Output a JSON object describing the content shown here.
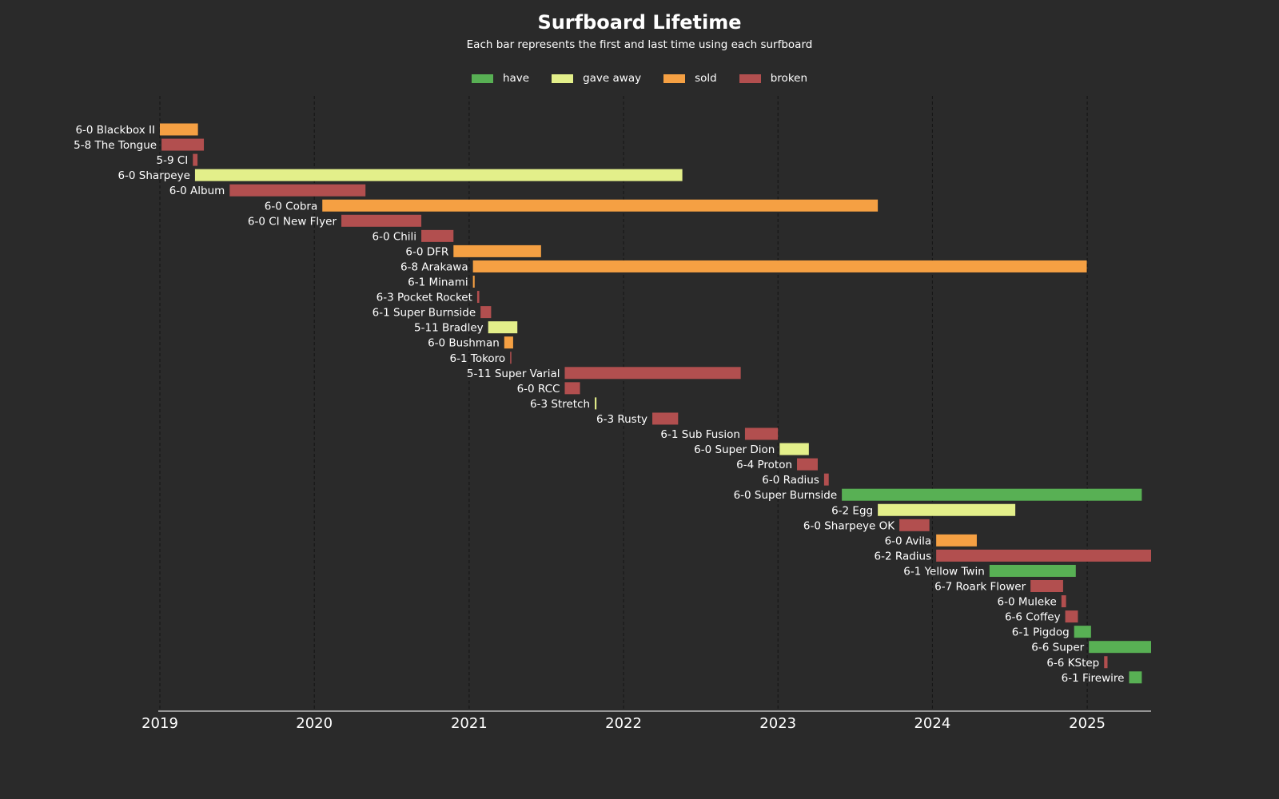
{
  "chart_data": {
    "type": "bar",
    "orientation": "horizontal-timeline",
    "title": "Surfboard Lifetime",
    "subtitle": "Each bar represents the first and last time using each surfboard",
    "xlabel": "",
    "ylabel": "",
    "xlim": [
      "2019-01-01",
      "2025-06-01"
    ],
    "x_ticks": [
      "2019",
      "2020",
      "2021",
      "2022",
      "2023",
      "2024",
      "2025"
    ],
    "grid": "vertical dashed at year ticks",
    "legend_position": "top-center",
    "statuses": [
      {
        "key": "have",
        "label": "have",
        "color": "#58b054"
      },
      {
        "key": "gave_away",
        "label": "gave away",
        "color": "#e3ef8a"
      },
      {
        "key": "sold",
        "label": "sold",
        "color": "#f5a043"
      },
      {
        "key": "broken",
        "label": "broken",
        "color": "#b24f4f"
      }
    ],
    "boards": [
      {
        "name": "6-0 Blackbox II",
        "start": "2019-01-01",
        "end": "2019-04-01",
        "status": "sold"
      },
      {
        "name": "5-8 The Tongue",
        "start": "2019-01-05",
        "end": "2019-04-15",
        "status": "broken"
      },
      {
        "name": "5-9 CI",
        "start": "2019-03-20",
        "end": "2019-03-31",
        "status": "broken"
      },
      {
        "name": "6-0 Sharpeye",
        "start": "2019-03-25",
        "end": "2022-05-20",
        "status": "gave_away"
      },
      {
        "name": "6-0 Album",
        "start": "2019-06-15",
        "end": "2020-05-01",
        "status": "broken"
      },
      {
        "name": "6-0 Cobra",
        "start": "2020-01-20",
        "end": "2023-08-25",
        "status": "sold"
      },
      {
        "name": "6-0 CI New Flyer",
        "start": "2020-03-05",
        "end": "2020-09-10",
        "status": "broken"
      },
      {
        "name": "6-0 Chili",
        "start": "2020-09-10",
        "end": "2020-11-25",
        "status": "broken"
      },
      {
        "name": "6-0 DFR",
        "start": "2020-11-25",
        "end": "2021-06-20",
        "status": "sold"
      },
      {
        "name": "6-8 Arakawa",
        "start": "2021-01-10",
        "end": "2024-12-31",
        "status": "sold"
      },
      {
        "name": "6-1 Minami",
        "start": "2021-01-10",
        "end": "2021-01-14",
        "status": "sold"
      },
      {
        "name": "6-3 Pocket Rocket",
        "start": "2021-01-20",
        "end": "2021-01-25",
        "status": "broken"
      },
      {
        "name": "6-1 Super Burnside",
        "start": "2021-01-28",
        "end": "2021-02-22",
        "status": "broken"
      },
      {
        "name": "5-11 Bradley",
        "start": "2021-02-15",
        "end": "2021-04-25",
        "status": "gave_away"
      },
      {
        "name": "6-0 Bushman",
        "start": "2021-03-25",
        "end": "2021-04-15",
        "status": "sold"
      },
      {
        "name": "6-1 Tokoro",
        "start": "2021-04-08",
        "end": "2021-04-10",
        "status": "broken"
      },
      {
        "name": "5-11 Super Varial",
        "start": "2021-08-15",
        "end": "2022-10-05",
        "status": "broken"
      },
      {
        "name": "6-0 RCC",
        "start": "2021-08-15",
        "end": "2021-09-20",
        "status": "broken"
      },
      {
        "name": "6-3 Stretch",
        "start": "2021-10-25",
        "end": "2021-10-29",
        "status": "gave_away"
      },
      {
        "name": "6-3 Rusty",
        "start": "2022-03-10",
        "end": "2022-05-10",
        "status": "broken"
      },
      {
        "name": "6-1 Sub Fusion",
        "start": "2022-10-15",
        "end": "2023-01-01",
        "status": "broken"
      },
      {
        "name": "6-0 Super Dion",
        "start": "2023-01-05",
        "end": "2023-03-15",
        "status": "gave_away"
      },
      {
        "name": "6-4 Proton",
        "start": "2023-02-15",
        "end": "2023-04-05",
        "status": "broken"
      },
      {
        "name": "6-0 Radius",
        "start": "2023-04-20",
        "end": "2023-05-01",
        "status": "broken"
      },
      {
        "name": "6-0 Super Burnside",
        "start": "2023-06-01",
        "end": "2025-05-10",
        "status": "have"
      },
      {
        "name": "6-2 Egg",
        "start": "2023-08-25",
        "end": "2024-07-15",
        "status": "gave_away"
      },
      {
        "name": "6-0 Sharpeye OK",
        "start": "2023-10-15",
        "end": "2023-12-25",
        "status": "broken"
      },
      {
        "name": "6-0 Avila",
        "start": "2024-01-10",
        "end": "2024-04-15",
        "status": "sold"
      },
      {
        "name": "6-2 Radius",
        "start": "2024-01-10",
        "end": "2025-06-01",
        "status": "broken"
      },
      {
        "name": "6-1 Yellow Twin",
        "start": "2024-05-15",
        "end": "2024-12-05",
        "status": "have"
      },
      {
        "name": "6-7 Roark Flower",
        "start": "2024-08-20",
        "end": "2024-11-05",
        "status": "broken"
      },
      {
        "name": "6-0 Muleke",
        "start": "2024-11-01",
        "end": "2024-11-12",
        "status": "broken"
      },
      {
        "name": "6-6 Coffey",
        "start": "2024-11-10",
        "end": "2024-12-10",
        "status": "broken"
      },
      {
        "name": "6-1 Pigdog",
        "start": "2024-12-01",
        "end": "2025-01-10",
        "status": "have"
      },
      {
        "name": "6-6 Super",
        "start": "2025-01-05",
        "end": "2025-06-01",
        "status": "have"
      },
      {
        "name": "6-6 KStep",
        "start": "2025-02-10",
        "end": "2025-02-18",
        "status": "broken"
      },
      {
        "name": "6-1 Firewire",
        "start": "2025-04-10",
        "end": "2025-05-10",
        "status": "have"
      }
    ]
  }
}
